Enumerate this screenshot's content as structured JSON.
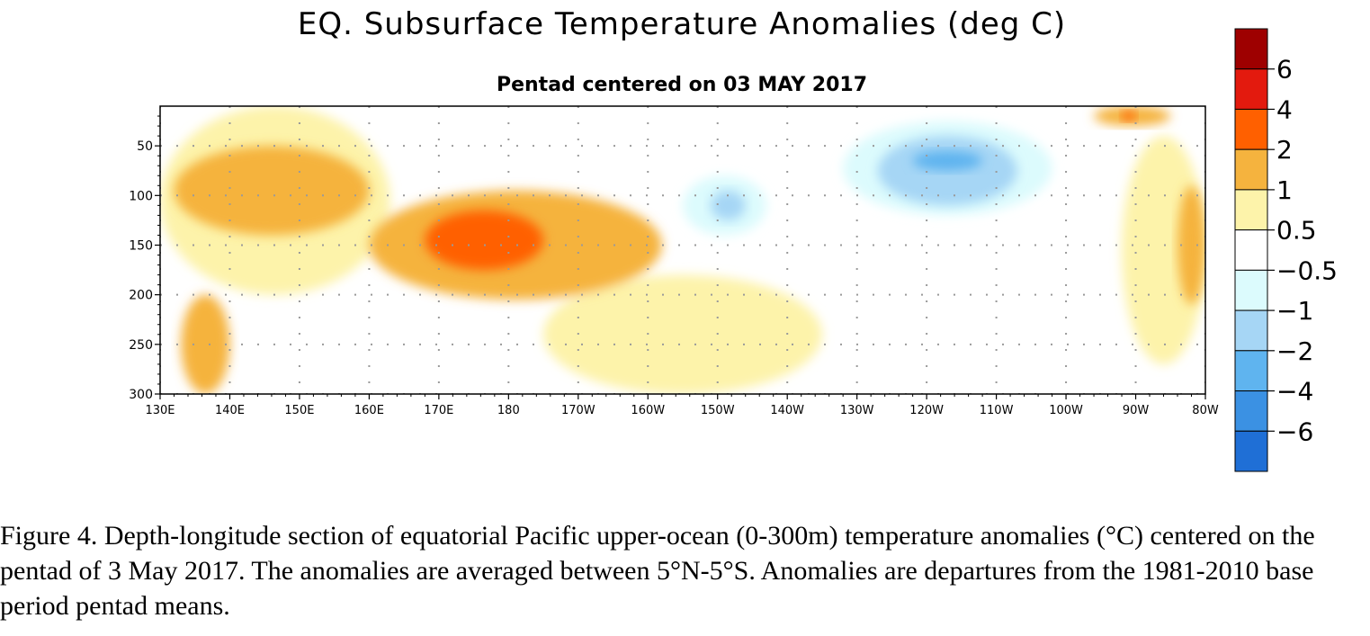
{
  "chart_data": {
    "type": "heatmap",
    "title": "EQ. Subsurface Temperature Anomalies (deg C)",
    "subtitle": "Pentad centered on 03 MAY 2017",
    "xlabel": "",
    "ylabel": "",
    "x_ticks": [
      "130E",
      "140E",
      "150E",
      "160E",
      "170E",
      "180",
      "170W",
      "160W",
      "150W",
      "140W",
      "130W",
      "120W",
      "110W",
      "100W",
      "90W",
      "80W"
    ],
    "x_lon_east": [
      130,
      140,
      150,
      160,
      170,
      180,
      190,
      200,
      210,
      220,
      230,
      240,
      250,
      260,
      270,
      280
    ],
    "y_ticks": [
      50,
      100,
      150,
      200,
      250,
      300
    ],
    "ylim": [
      300,
      10
    ],
    "xlim": [
      130,
      280
    ],
    "grid": true,
    "colorbar": {
      "labels": [
        "6",
        "4",
        "2",
        "1",
        "0.5",
        "−0.5",
        "−1",
        "−2",
        "−4",
        "−6"
      ],
      "label_values": [
        6,
        4,
        2,
        1,
        0.5,
        -0.5,
        -1,
        -2,
        -4,
        -6
      ],
      "colors": [
        "#9e0000",
        "#e31a0e",
        "#ff6000",
        "#f5b33e",
        "#fdf3aa",
        "#ffffff",
        "#dcfbfd",
        "#a6d6f5",
        "#5fb4ef",
        "#3b91e3",
        "#1f6fd6"
      ],
      "color_ranges": [
        [
          6,
          8
        ],
        [
          4,
          6
        ],
        [
          2,
          4
        ],
        [
          1,
          2
        ],
        [
          0.5,
          1
        ],
        [
          -0.5,
          0.5
        ],
        [
          -1,
          -0.5
        ],
        [
          -2,
          -1
        ],
        [
          -4,
          -2
        ],
        [
          -6,
          -4
        ],
        [
          -8,
          -6
        ]
      ]
    },
    "anomaly_features": [
      {
        "class": 1,
        "lon": [
          130,
          163
        ],
        "depth": [
          10,
          200
        ],
        "note": "broad warm anomaly western Pacific upper layer"
      },
      {
        "class": 2,
        "lon": [
          132,
          160
        ],
        "depth": [
          50,
          140
        ],
        "note": "1 to 2 degC band"
      },
      {
        "class": 2,
        "lon": [
          160,
          202
        ],
        "depth": [
          95,
          205
        ],
        "note": "1 to 2 degC core"
      },
      {
        "class": 3,
        "lon": [
          168,
          185
        ],
        "depth": [
          115,
          175
        ],
        "note": "2 to 4 degC core near dateline"
      },
      {
        "class": 2,
        "lon": [
          133,
          140
        ],
        "depth": [
          200,
          300
        ],
        "note": "warm tongue at depth"
      },
      {
        "class": 1,
        "lon": [
          185,
          225
        ],
        "depth": [
          180,
          300
        ],
        "note": "0.5 to 1 degC below thermocline"
      },
      {
        "class": -1,
        "lon": [
          228,
          258
        ],
        "depth": [
          25,
          120
        ],
        "note": "cool anomaly eastern upper layer"
      },
      {
        "class": -2,
        "lon": [
          233,
          253
        ],
        "depth": [
          40,
          110
        ],
        "note": "-1 to -2 degC"
      },
      {
        "class": -3,
        "lon": [
          238,
          248
        ],
        "depth": [
          55,
          75
        ],
        "note": "-2 to -4 degC core"
      },
      {
        "class": -1,
        "lon": [
          205,
          217
        ],
        "depth": [
          80,
          140
        ],
        "note": "cool patch near 145W"
      },
      {
        "class": -2,
        "lon": [
          209,
          214
        ],
        "depth": [
          95,
          125
        ],
        "note": "-1 to -2 degC patch"
      },
      {
        "class": 1,
        "lon": [
          268,
          280
        ],
        "depth": [
          40,
          270
        ],
        "note": "warm near South America"
      },
      {
        "class": 2,
        "lon": [
          276,
          280
        ],
        "depth": [
          90,
          210
        ],
        "note": "1 to 2 degC far east"
      },
      {
        "class": 2,
        "lon": [
          264,
          275
        ],
        "depth": [
          10,
          30
        ],
        "note": "1 to 2 degC surface east"
      },
      {
        "class": 3,
        "lon": [
          268,
          270
        ],
        "depth": [
          15,
          25
        ],
        "note": "2 to 4 degC surface spot"
      }
    ]
  },
  "caption": "Figure 4. Depth-longitude section of equatorial Pacific upper-ocean (0-300m) temperature anomalies (°C) centered on the pentad of 3 May 2017. The anomalies are averaged between 5°N-5°S. Anomalies are departures from the 1981-2010 base period pentad means."
}
